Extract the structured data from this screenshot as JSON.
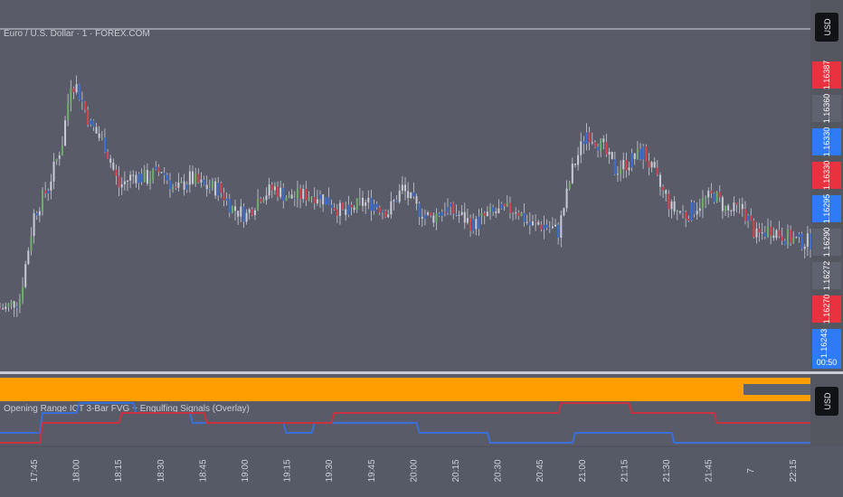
{
  "symbol_title": "Euro / U.S. Dollar · 1 · FOREX.COM",
  "currency_label": "USD",
  "indicator_title": "Opening Range ICT 3-Bar FVG + Engulfing Signals (Overlay)",
  "indicator_currency_label": "USD",
  "colors": {
    "background": "#595c68",
    "axis_background": "#54575f",
    "up": "#6fae6a",
    "down": "#d9424f",
    "neutral": "#c9ccd6",
    "blue": "#3b6fd8",
    "red": "#c8323e",
    "orange": "#ff9e00",
    "tag_red": "#e8323f",
    "tag_blue": "#2f7bf5",
    "tag_gray": "#5f6370"
  },
  "price_tags": [
    {
      "price": 1.16387,
      "label": "1.16387",
      "color": "red"
    },
    {
      "price": 1.1636,
      "label": "1.16360",
      "color": "gray"
    },
    {
      "price": 1.1633,
      "label": "1.16330",
      "color": "blue"
    },
    {
      "price": 1.1633,
      "label": "1.16330",
      "color": "red"
    },
    {
      "price": 1.16295,
      "label": "1.16295",
      "color": "blue"
    },
    {
      "price": 1.1629,
      "label": "1.16290",
      "color": "gray"
    },
    {
      "price": 1.16272,
      "label": "1.16272",
      "color": "gray"
    },
    {
      "price": 1.1627,
      "label": "1.16270",
      "color": "red"
    },
    {
      "price": 1.16243,
      "label": "1.16243",
      "color": "blue",
      "sub": "00:50"
    }
  ],
  "chart_data": {
    "type": "candlestick",
    "x_ticks": [
      "17:45",
      "18:00",
      "18:15",
      "18:30",
      "18:45",
      "19:00",
      "19:15",
      "19:30",
      "19:45",
      "20:00",
      "20:15",
      "20:30",
      "20:45",
      "21:00",
      "21:15",
      "21:30",
      "21:45",
      "7",
      "22:15"
    ],
    "close_path": [
      [
        "17:40",
        1.16262
      ],
      [
        "17:45",
        1.16268
      ],
      [
        "17:50",
        1.16318
      ],
      [
        "17:55",
        1.16335
      ],
      [
        "18:00",
        1.16362
      ],
      [
        "18:03",
        1.16398
      ],
      [
        "18:05",
        1.16395
      ],
      [
        "18:10",
        1.16372
      ],
      [
        "18:15",
        1.1636
      ],
      [
        "18:20",
        1.16335
      ],
      [
        "18:25",
        1.16342
      ],
      [
        "18:30",
        1.1634
      ],
      [
        "18:35",
        1.16345
      ],
      [
        "18:40",
        1.16332
      ],
      [
        "18:45",
        1.1634
      ],
      [
        "18:50",
        1.16335
      ],
      [
        "18:55",
        1.16334
      ],
      [
        "19:00",
        1.16322
      ],
      [
        "19:05",
        1.16318
      ],
      [
        "19:10",
        1.1633
      ],
      [
        "19:15",
        1.16334
      ],
      [
        "19:20",
        1.16328
      ],
      [
        "19:25",
        1.1633
      ],
      [
        "19:30",
        1.1633
      ],
      [
        "19:35",
        1.16325
      ],
      [
        "19:40",
        1.16318
      ],
      [
        "19:45",
        1.16325
      ],
      [
        "19:50",
        1.16325
      ],
      [
        "19:55",
        1.1632
      ],
      [
        "20:00",
        1.16334
      ],
      [
        "20:05",
        1.16322
      ],
      [
        "20:10",
        1.16316
      ],
      [
        "20:15",
        1.16322
      ],
      [
        "20:20",
        1.16318
      ],
      [
        "20:25",
        1.16312
      ],
      [
        "20:30",
        1.16318
      ],
      [
        "20:35",
        1.1632
      ],
      [
        "20:40",
        1.16322
      ],
      [
        "20:45",
        1.16312
      ],
      [
        "20:50",
        1.16312
      ],
      [
        "20:55",
        1.16308
      ],
      [
        "21:00",
        1.16345
      ],
      [
        "21:05",
        1.16368
      ],
      [
        "21:10",
        1.1636
      ],
      [
        "21:15",
        1.16345
      ],
      [
        "21:20",
        1.1635
      ],
      [
        "21:25",
        1.16356
      ],
      [
        "21:30",
        1.16338
      ],
      [
        "21:35",
        1.16322
      ],
      [
        "21:40",
        1.16318
      ],
      [
        "21:45",
        1.16325
      ],
      [
        "21:50",
        1.1633
      ],
      [
        "21:55",
        1.1632
      ],
      [
        "22:00",
        1.16322
      ],
      [
        "22:05",
        1.16305
      ],
      [
        "22:10",
        1.1631
      ],
      [
        "22:15",
        1.16305
      ],
      [
        "22:20",
        1.16302
      ]
    ],
    "y_range": [
      1.1623,
      1.1642
    ],
    "x_range": [
      "17:38",
      "22:24"
    ],
    "indicator_lines": {
      "orange_band": "full width",
      "blue_steps": [
        [
          "17:38",
          1
        ],
        [
          "17:52",
          1
        ],
        [
          "17:53",
          3
        ],
        [
          "18:05",
          3
        ],
        [
          "18:06",
          4
        ],
        [
          "18:25",
          4
        ],
        [
          "18:26",
          3
        ],
        [
          "18:45",
          3
        ],
        [
          "18:46",
          2
        ],
        [
          "19:18",
          2
        ],
        [
          "19:19",
          1
        ],
        [
          "19:28",
          1
        ],
        [
          "19:29",
          2
        ],
        [
          "20:05",
          2
        ],
        [
          "20:06",
          1
        ],
        [
          "20:30",
          1
        ],
        [
          "20:31",
          0
        ],
        [
          "21:00",
          0
        ],
        [
          "21:01",
          1
        ],
        [
          "21:35",
          1
        ],
        [
          "21:36",
          0
        ],
        [
          "22:24",
          0
        ]
      ],
      "red_steps": [
        [
          "17:38",
          0
        ],
        [
          "17:52",
          0
        ],
        [
          "17:53",
          2
        ],
        [
          "18:20",
          2
        ],
        [
          "18:21",
          3
        ],
        [
          "18:50",
          3
        ],
        [
          "18:51",
          2
        ],
        [
          "19:35",
          2
        ],
        [
          "19:36",
          3
        ],
        [
          "20:55",
          3
        ],
        [
          "20:56",
          4
        ],
        [
          "21:20",
          4
        ],
        [
          "21:21",
          3
        ],
        [
          "21:50",
          3
        ],
        [
          "21:51",
          2
        ],
        [
          "22:24",
          2
        ]
      ]
    }
  }
}
